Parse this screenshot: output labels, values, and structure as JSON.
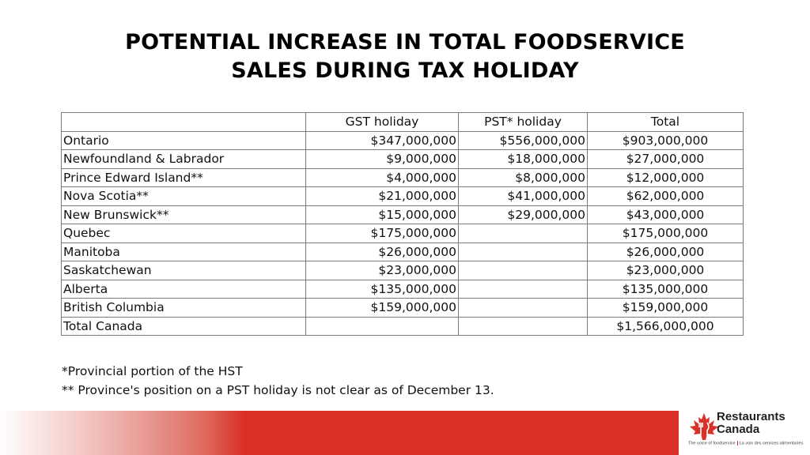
{
  "slide": {
    "title_line1": "POTENTIAL INCREASE IN TOTAL FOODSERVICE",
    "title_line2": "SALES DURING TAX HOLIDAY"
  },
  "table": {
    "headers": [
      "",
      "GST holiday",
      "PST* holiday",
      "Total"
    ],
    "rows": [
      [
        "Ontario",
        "$347,000,000",
        "$556,000,000",
        "$903,000,000"
      ],
      [
        "Newfoundland & Labrador",
        "$9,000,000",
        "$18,000,000",
        "$27,000,000"
      ],
      [
        "Prince Edward Island**",
        "$4,000,000",
        "$8,000,000",
        "$12,000,000"
      ],
      [
        "Nova Scotia**",
        "$21,000,000",
        "$41,000,000",
        "$62,000,000"
      ],
      [
        "New Brunswick**",
        "$15,000,000",
        "$29,000,000",
        "$43,000,000"
      ],
      [
        "Quebec",
        "$175,000,000",
        "",
        "$175,000,000"
      ],
      [
        "Manitoba",
        "$26,000,000",
        "",
        "$26,000,000"
      ],
      [
        "Saskatchewan",
        "$23,000,000",
        "",
        "$23,000,000"
      ],
      [
        "Alberta",
        "$135,000,000",
        "",
        "$135,000,000"
      ],
      [
        "British Columbia",
        "$159,000,000",
        "",
        "$159,000,000"
      ],
      [
        "Total Canada",
        "",
        "",
        "$1,566,000,000"
      ]
    ]
  },
  "notes": {
    "note1": "*Provincial portion of the HST",
    "note2": "** Province's position on a PST holiday is not clear as of December 13."
  },
  "footer": {
    "brand_color": "#d93128",
    "logo_icon": "maple-leaf-icon",
    "logo_name_line1": "Restaurants",
    "logo_name_line2": "Canada",
    "tagline_en": "The voice of foodservice",
    "tagline_fr": "La voix des services alimentaires"
  }
}
